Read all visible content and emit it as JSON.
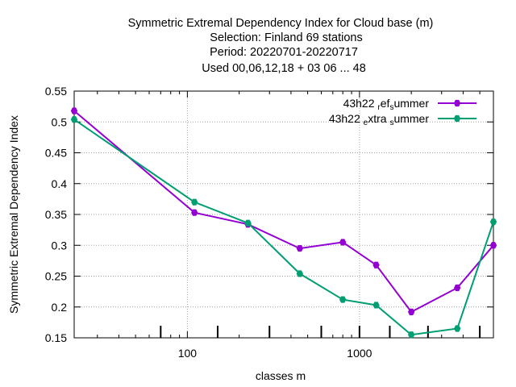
{
  "chart_data": {
    "type": "line",
    "title_lines": [
      "Symmetric Extremal Dependency Index  for Cloud base (m)",
      "Selection: Finland     69 stations",
      "Period: 20220701-20220717",
      "Used  00,06,12,18  + 03 06 ... 48"
    ],
    "xlabel": "classes m",
    "ylabel": "Symmetric Extremal Dependency Index",
    "x_scale": "log",
    "xlim": [
      22,
      6000
    ],
    "ylim": [
      0.15,
      0.55
    ],
    "x_ticks": [
      100,
      1000
    ],
    "x_tick_labels": [
      "100",
      "1000"
    ],
    "y_ticks": [
      0.15,
      0.2,
      0.25,
      0.3,
      0.35,
      0.4,
      0.45,
      0.5,
      0.55
    ],
    "y_tick_labels": [
      "0.15",
      "0.2",
      "0.25",
      "0.3",
      "0.35",
      "0.4",
      "0.45",
      "0.5",
      "0.55"
    ],
    "class_marks": [
      70,
      150,
      300,
      600,
      1000,
      1500,
      2500,
      5000
    ],
    "grid": true,
    "legend_position": "top-right",
    "series": [
      {
        "name": "43h22_ref_summer",
        "legend_parts": [
          [
            "43h22 ",
            "n"
          ],
          [
            "r",
            "s"
          ],
          [
            "ef",
            "n"
          ],
          [
            "s",
            "s"
          ],
          [
            "ummer",
            "n"
          ]
        ],
        "color": "#9400d3",
        "x": [
          22,
          110,
          225,
          450,
          800,
          1250,
          2000,
          3700,
          6000
        ],
        "y": [
          0.518,
          0.353,
          0.334,
          0.295,
          0.305,
          0.268,
          0.192,
          0.231,
          0.3
        ]
      },
      {
        "name": "43h22_extra_summer",
        "legend_parts": [
          [
            "43h22 ",
            "n"
          ],
          [
            "e",
            "s"
          ],
          [
            "xtra ",
            "n"
          ],
          [
            "s",
            "s"
          ],
          [
            "ummer",
            "n"
          ]
        ],
        "color": "#009e73",
        "x": [
          22,
          110,
          225,
          450,
          800,
          1250,
          2000,
          3700,
          6000
        ],
        "y": [
          0.504,
          0.37,
          0.336,
          0.254,
          0.212,
          0.203,
          0.155,
          0.165,
          0.338
        ]
      }
    ]
  }
}
